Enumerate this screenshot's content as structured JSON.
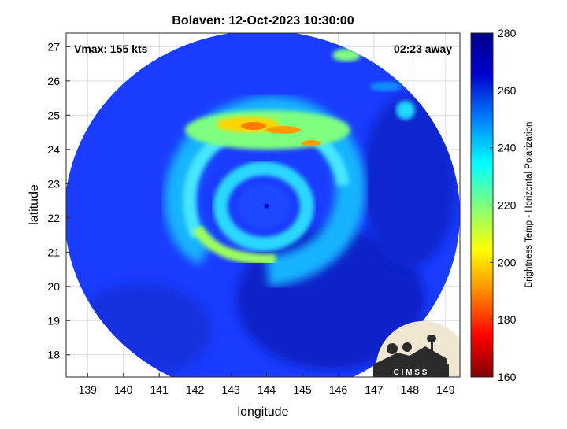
{
  "title": "Bolaven: 12-Oct-2023 10:30:00",
  "vmax_label": "Vmax: 155 kts",
  "time_label": "02:23 away",
  "xlabel": "longitude",
  "ylabel": "latitude",
  "xticks": [
    "139",
    "140",
    "141",
    "142",
    "143",
    "144",
    "145",
    "146",
    "147",
    "148",
    "149"
  ],
  "yticks": [
    "27",
    "26",
    "25",
    "24",
    "23",
    "22",
    "21",
    "20",
    "19",
    "18"
  ],
  "colorbar": {
    "label": "Brightness Temp - Horizontal Polarization",
    "ticks": [
      "280",
      "260",
      "240",
      "220",
      "200",
      "180",
      "160"
    ],
    "min": 160,
    "max": 280,
    "colors": [
      "#7f0000",
      "#ff0000",
      "#ff8c00",
      "#ffff00",
      "#7fff7f",
      "#00ffff",
      "#0080ff",
      "#0000cd",
      "#00008b"
    ]
  },
  "logo_text": "C I M S S",
  "map": {
    "xlim": [
      138.4,
      149.4
    ],
    "ylim": [
      17.35,
      27.4
    ],
    "storm_center": {
      "lon": 144.0,
      "lat": 22.35
    }
  }
}
